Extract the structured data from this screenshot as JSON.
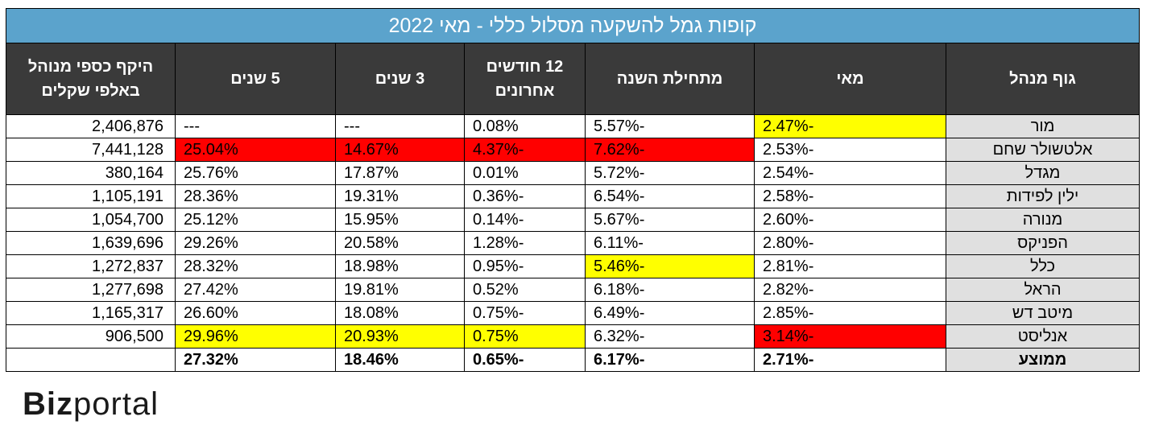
{
  "title": "קופות גמל להשקעה מסלול כללי - מאי 2022",
  "headers": {
    "manager": "גוף מנהל",
    "may": "מאי",
    "ytd": "מתחילת השנה",
    "m12": "12 חודשים אחרונים",
    "y3": "3 שנים",
    "y5": "5 שנים",
    "aum": "היקף כספי מנוהל באלפי שקלים"
  },
  "rows": [
    {
      "name": "מור",
      "may": "-2.47%",
      "ytd": "-5.57%",
      "m12": "0.08%",
      "y3": "---",
      "y5": "---",
      "aum": "2,406,876",
      "hl": {
        "may": "yellow"
      }
    },
    {
      "name": "אלטשולר שחם",
      "may": "-2.53%",
      "ytd": "-7.62%",
      "m12": "-4.37%",
      "y3": "14.67%",
      "y5": "25.04%",
      "aum": "7,441,128",
      "hl": {
        "ytd": "red",
        "m12": "red",
        "y3": "red",
        "y5": "red"
      }
    },
    {
      "name": "מגדל",
      "may": "-2.54%",
      "ytd": "-5.72%",
      "m12": "0.01%",
      "y3": "17.87%",
      "y5": "25.76%",
      "aum": "380,164",
      "hl": {}
    },
    {
      "name": "ילין לפידות",
      "may": "-2.58%",
      "ytd": "-6.54%",
      "m12": "-0.36%",
      "y3": "19.31%",
      "y5": "28.36%",
      "aum": "1,105,191",
      "hl": {}
    },
    {
      "name": "מנורה",
      "may": "-2.60%",
      "ytd": "-5.67%",
      "m12": "-0.14%",
      "y3": "15.95%",
      "y5": "25.12%",
      "aum": "1,054,700",
      "hl": {}
    },
    {
      "name": "הפניקס",
      "may": "-2.80%",
      "ytd": "-6.11%",
      "m12": "-1.28%",
      "y3": "20.58%",
      "y5": "29.26%",
      "aum": "1,639,696",
      "hl": {}
    },
    {
      "name": "כלל",
      "may": "-2.81%",
      "ytd": "-5.46%",
      "m12": "-0.95%",
      "y3": "18.98%",
      "y5": "28.32%",
      "aum": "1,272,837",
      "hl": {
        "ytd": "yellow"
      }
    },
    {
      "name": "הראל",
      "may": "-2.82%",
      "ytd": "-6.18%",
      "m12": "0.52%",
      "y3": "19.81%",
      "y5": "27.42%",
      "aum": "1,277,698",
      "hl": {}
    },
    {
      "name": "מיטב דש",
      "may": "-2.85%",
      "ytd": "-6.49%",
      "m12": "-0.75%",
      "y3": "18.08%",
      "y5": "26.60%",
      "aum": "1,165,317",
      "hl": {}
    },
    {
      "name": "אנליסט",
      "may": "-3.14%",
      "ytd": "-6.32%",
      "m12": "0.75%",
      "y3": "20.93%",
      "y5": "29.96%",
      "aum": "906,500",
      "hl": {
        "may": "red",
        "m12": "yellow",
        "y3": "yellow",
        "y5": "yellow"
      }
    }
  ],
  "average": {
    "name": "ממוצע",
    "may": "-2.71%",
    "ytd": "-6.17%",
    "m12": "-0.65%",
    "y3": "18.46%",
    "y5": "27.32%",
    "aum": ""
  },
  "logo": {
    "part1": "Biz",
    "part2": "portal"
  },
  "colors": {
    "title_bg": "#5ba3cc",
    "header_bg": "#3a3a3a",
    "name_bg": "#e0e0e0",
    "highlight_yellow": "#ffff00",
    "highlight_red": "#ff0000"
  }
}
